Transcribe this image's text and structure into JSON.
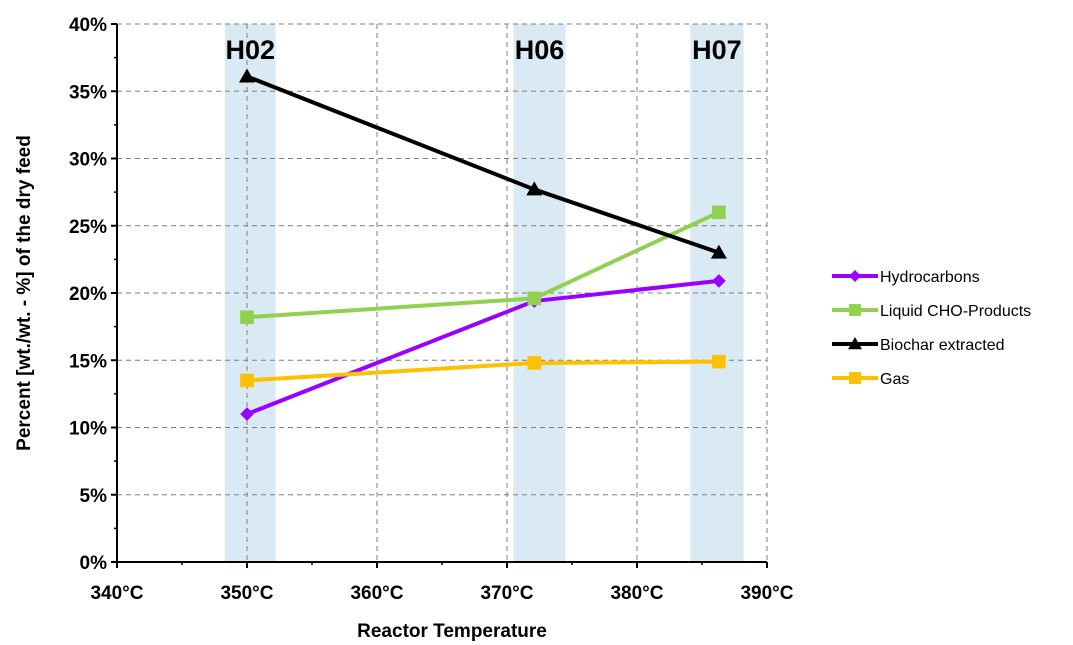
{
  "chart_data": {
    "type": "line",
    "xlabel": "Reactor Temperature",
    "ylabel": "Percent [wt./wt. - %] of the dry feed",
    "xlim": [
      340,
      390
    ],
    "ylim": [
      0,
      40
    ],
    "x_ticks": [
      "340°C",
      "350°C",
      "360°C",
      "370°C",
      "380°C",
      "390°C"
    ],
    "y_ticks": [
      "0%",
      "5%",
      "10%",
      "15%",
      "20%",
      "25%",
      "30%",
      "35%",
      "40%"
    ],
    "grid": true,
    "legend_position": "right",
    "bands": [
      {
        "label": "H02",
        "x_from": 348.3,
        "x_to": 352.2
      },
      {
        "label": "H06",
        "x_from": 370.5,
        "x_to": 374.5
      },
      {
        "label": "H07",
        "x_from": 384.1,
        "x_to": 388.2
      }
    ],
    "x": [
      350,
      372.1,
      386.3
    ],
    "series": [
      {
        "name": "Hydrocarbons",
        "color": "#9900ff",
        "marker": "diamond",
        "values": [
          11.0,
          19.4,
          20.9
        ]
      },
      {
        "name": "Liquid CHO-Products",
        "color": "#92d050",
        "marker": "square",
        "values": [
          18.2,
          19.6,
          26.0
        ]
      },
      {
        "name": "Biochar extracted",
        "color": "#000000",
        "marker": "triangle",
        "values": [
          36.1,
          27.7,
          23.0
        ]
      },
      {
        "name": "Gas",
        "color": "#ffc000",
        "marker": "square",
        "values": [
          13.5,
          14.8,
          14.9
        ]
      }
    ]
  }
}
